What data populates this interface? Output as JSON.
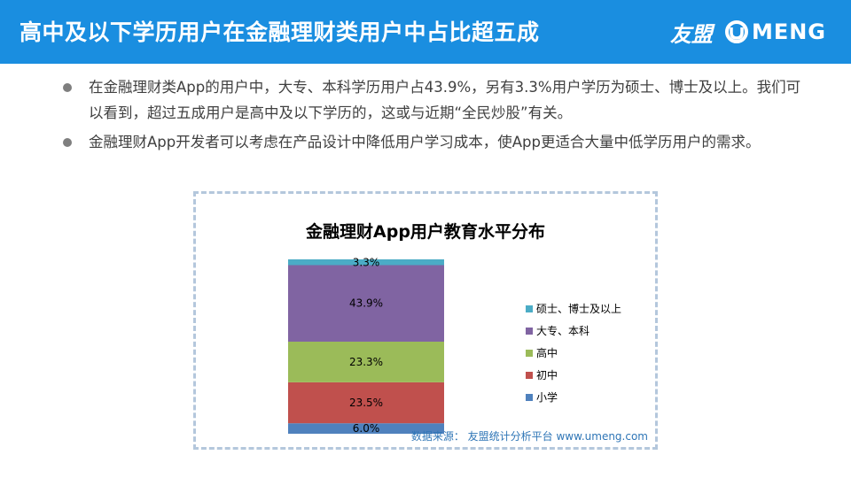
{
  "header": {
    "title": "高中及以下学历用户在金融理财类用户中占比超五成",
    "brand_cn": "友盟",
    "brand_en": "MENG",
    "brand_icon": "umeng-u-logo-icon",
    "background_color": "#1a8ee0"
  },
  "bullets": [
    "在金融理财类App的用户中，大专、本科学历用户占43.9%，另有3.3%用户学历为硕士、博士及以上。我们可以看到，超过五成用户是高中及以下学历的，这或与近期“全民炒股”有关。",
    "金融理财App开发者可以考虑在产品设计中降低用户学习成本，使App更适合大量中低学历用户的需求。"
  ],
  "chart_data": {
    "type": "bar",
    "stacked": true,
    "title": "金融理财App用户教育水平分布",
    "legend_position": "right",
    "grid": false,
    "ylim": [
      0,
      100
    ],
    "series": [
      {
        "name": "小学",
        "values": [
          6.0
        ],
        "label": "6.0%",
        "color": "#4f81bd"
      },
      {
        "name": "初中",
        "values": [
          23.5
        ],
        "label": "23.5%",
        "color": "#c0504d"
      },
      {
        "name": "高中",
        "values": [
          23.3
        ],
        "label": "23.3%",
        "color": "#9bbb59"
      },
      {
        "name": "大专、本科",
        "values": [
          43.9
        ],
        "label": "43.9%",
        "color": "#8064a2"
      },
      {
        "name": "硕士、博士及以上",
        "values": [
          3.3
        ],
        "label": "3.3%",
        "color": "#4bacc6"
      }
    ],
    "legend_order": [
      "硕士、博士及以上",
      "大专、本科",
      "高中",
      "初中",
      "小学"
    ]
  },
  "source": "数据来源： 友盟统计分析平台 www.umeng.com"
}
